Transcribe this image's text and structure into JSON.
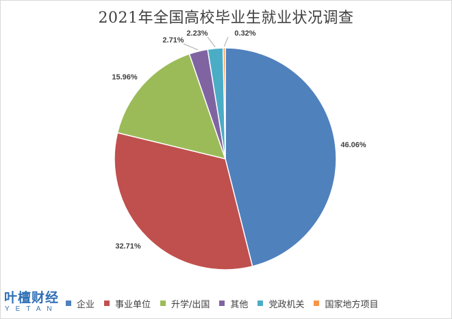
{
  "chart_data": {
    "type": "pie",
    "title": "2021年全国高校毕业生就业状况调查",
    "slices": [
      {
        "name": "企业",
        "value": 46.06,
        "label": "46.06%",
        "color": "#4f81bd"
      },
      {
        "name": "事业单位",
        "value": 32.71,
        "label": "32.71%",
        "color": "#c0504d"
      },
      {
        "name": "升学/出国",
        "value": 15.96,
        "label": "15.96%",
        "color": "#9bbb59"
      },
      {
        "name": "其他",
        "value": 2.71,
        "label": "2.71%",
        "color": "#8064a2"
      },
      {
        "name": "党政机关",
        "value": 2.23,
        "label": "2.23%",
        "color": "#4bacc6"
      },
      {
        "name": "国家地方项目",
        "value": 0.32,
        "label": "0.32%",
        "color": "#f79646"
      }
    ],
    "start_angle": "12 o'clock",
    "direction": "clockwise",
    "legend_position": "bottom"
  },
  "logo": {
    "main": "叶檀财经",
    "sub": "YETAN"
  }
}
